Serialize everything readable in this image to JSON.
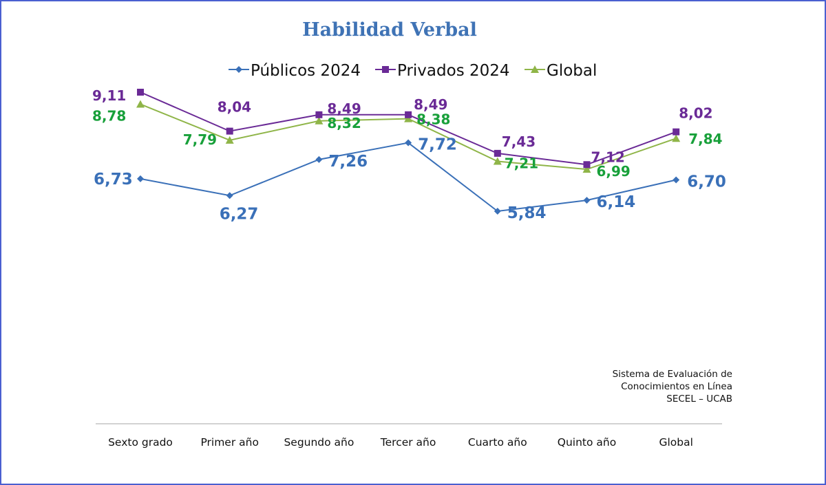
{
  "chart_data": {
    "type": "line",
    "title": "Habilidad Verbal",
    "categories": [
      "Sexto grado",
      "Primer año",
      "Segundo año",
      "Tercer año",
      "Cuarto año",
      "Quinto año",
      "Global"
    ],
    "series": [
      {
        "name": "Públicos 2024",
        "color": "#3a70b8",
        "marker": "diamond",
        "values": [
          6.73,
          6.27,
          7.26,
          7.72,
          5.84,
          6.14,
          6.7
        ],
        "labels": [
          "6,73",
          "6,27",
          "7,26",
          "7,72",
          "5,84",
          "6,14",
          "6,70"
        ]
      },
      {
        "name": "Privados 2024",
        "color": "#6a2a96",
        "marker": "square",
        "values": [
          9.11,
          8.04,
          8.49,
          8.49,
          7.43,
          7.12,
          8.02
        ],
        "labels": [
          "9,11",
          "8,04",
          "8,49",
          "8,49",
          "7,43",
          "7,12",
          "8,02"
        ]
      },
      {
        "name": "Global",
        "color": "#8fb548",
        "label_color": "#18a03a",
        "marker": "triangle",
        "values": [
          8.78,
          7.79,
          8.32,
          8.38,
          7.21,
          6.99,
          7.84
        ],
        "labels": [
          "8,78",
          "7,79",
          "8,32",
          "8,38",
          "7,21",
          "6,99",
          "7,84"
        ]
      }
    ],
    "ylim": [
      4.5,
      10
    ],
    "grid": false,
    "legend": "top"
  },
  "credit": {
    "line1": "Sistema de Evaluación de",
    "line2": "Conocimientos en Línea",
    "line3": "SECEL – UCAB"
  }
}
